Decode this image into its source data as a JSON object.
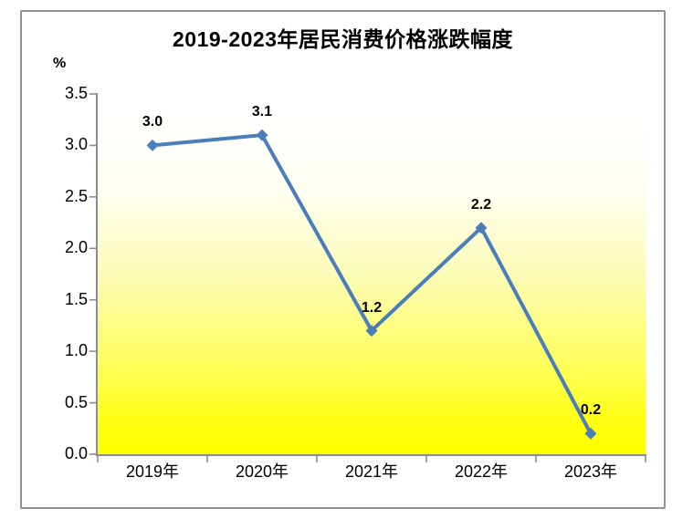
{
  "window": {
    "background": "#FFFFFF",
    "frame_border_color": "#909090"
  },
  "chart_data": {
    "type": "line",
    "title": "2019-2023年居民消费价格涨跌幅度",
    "ylabel": "%",
    "xlabel": "",
    "categories": [
      "2019年",
      "2020年",
      "2021年",
      "2022年",
      "2023年"
    ],
    "values": [
      3.0,
      3.1,
      1.2,
      2.2,
      0.2
    ],
    "data_labels": [
      "3.0",
      "3.1",
      "1.2",
      "2.2",
      "0.2"
    ],
    "ylim": [
      0,
      3.5
    ],
    "ytick_step": 0.5,
    "ytick_labels": [
      "0.0",
      "0.5",
      "1.0",
      "1.5",
      "2.0",
      "2.5",
      "3.0",
      "3.5"
    ],
    "grid": false,
    "legend": "none",
    "marker": "diamond",
    "colors": {
      "line": "#4A7EBB",
      "marker": "#4A7EBB",
      "axis": "#8C8C8C",
      "text": "#000000",
      "plot_gradient": [
        {
          "offset": "0%",
          "color": "#FFFFFF"
        },
        {
          "offset": "16%",
          "color": "#FFFFFA"
        },
        {
          "offset": "28%",
          "color": "#FFFFEE"
        },
        {
          "offset": "50%",
          "color": "#FCFBB8"
        },
        {
          "offset": "76%",
          "color": "#FFFF58"
        },
        {
          "offset": "93%",
          "color": "#FFFF0A"
        },
        {
          "offset": "100%",
          "color": "#FFFF00"
        }
      ]
    }
  }
}
